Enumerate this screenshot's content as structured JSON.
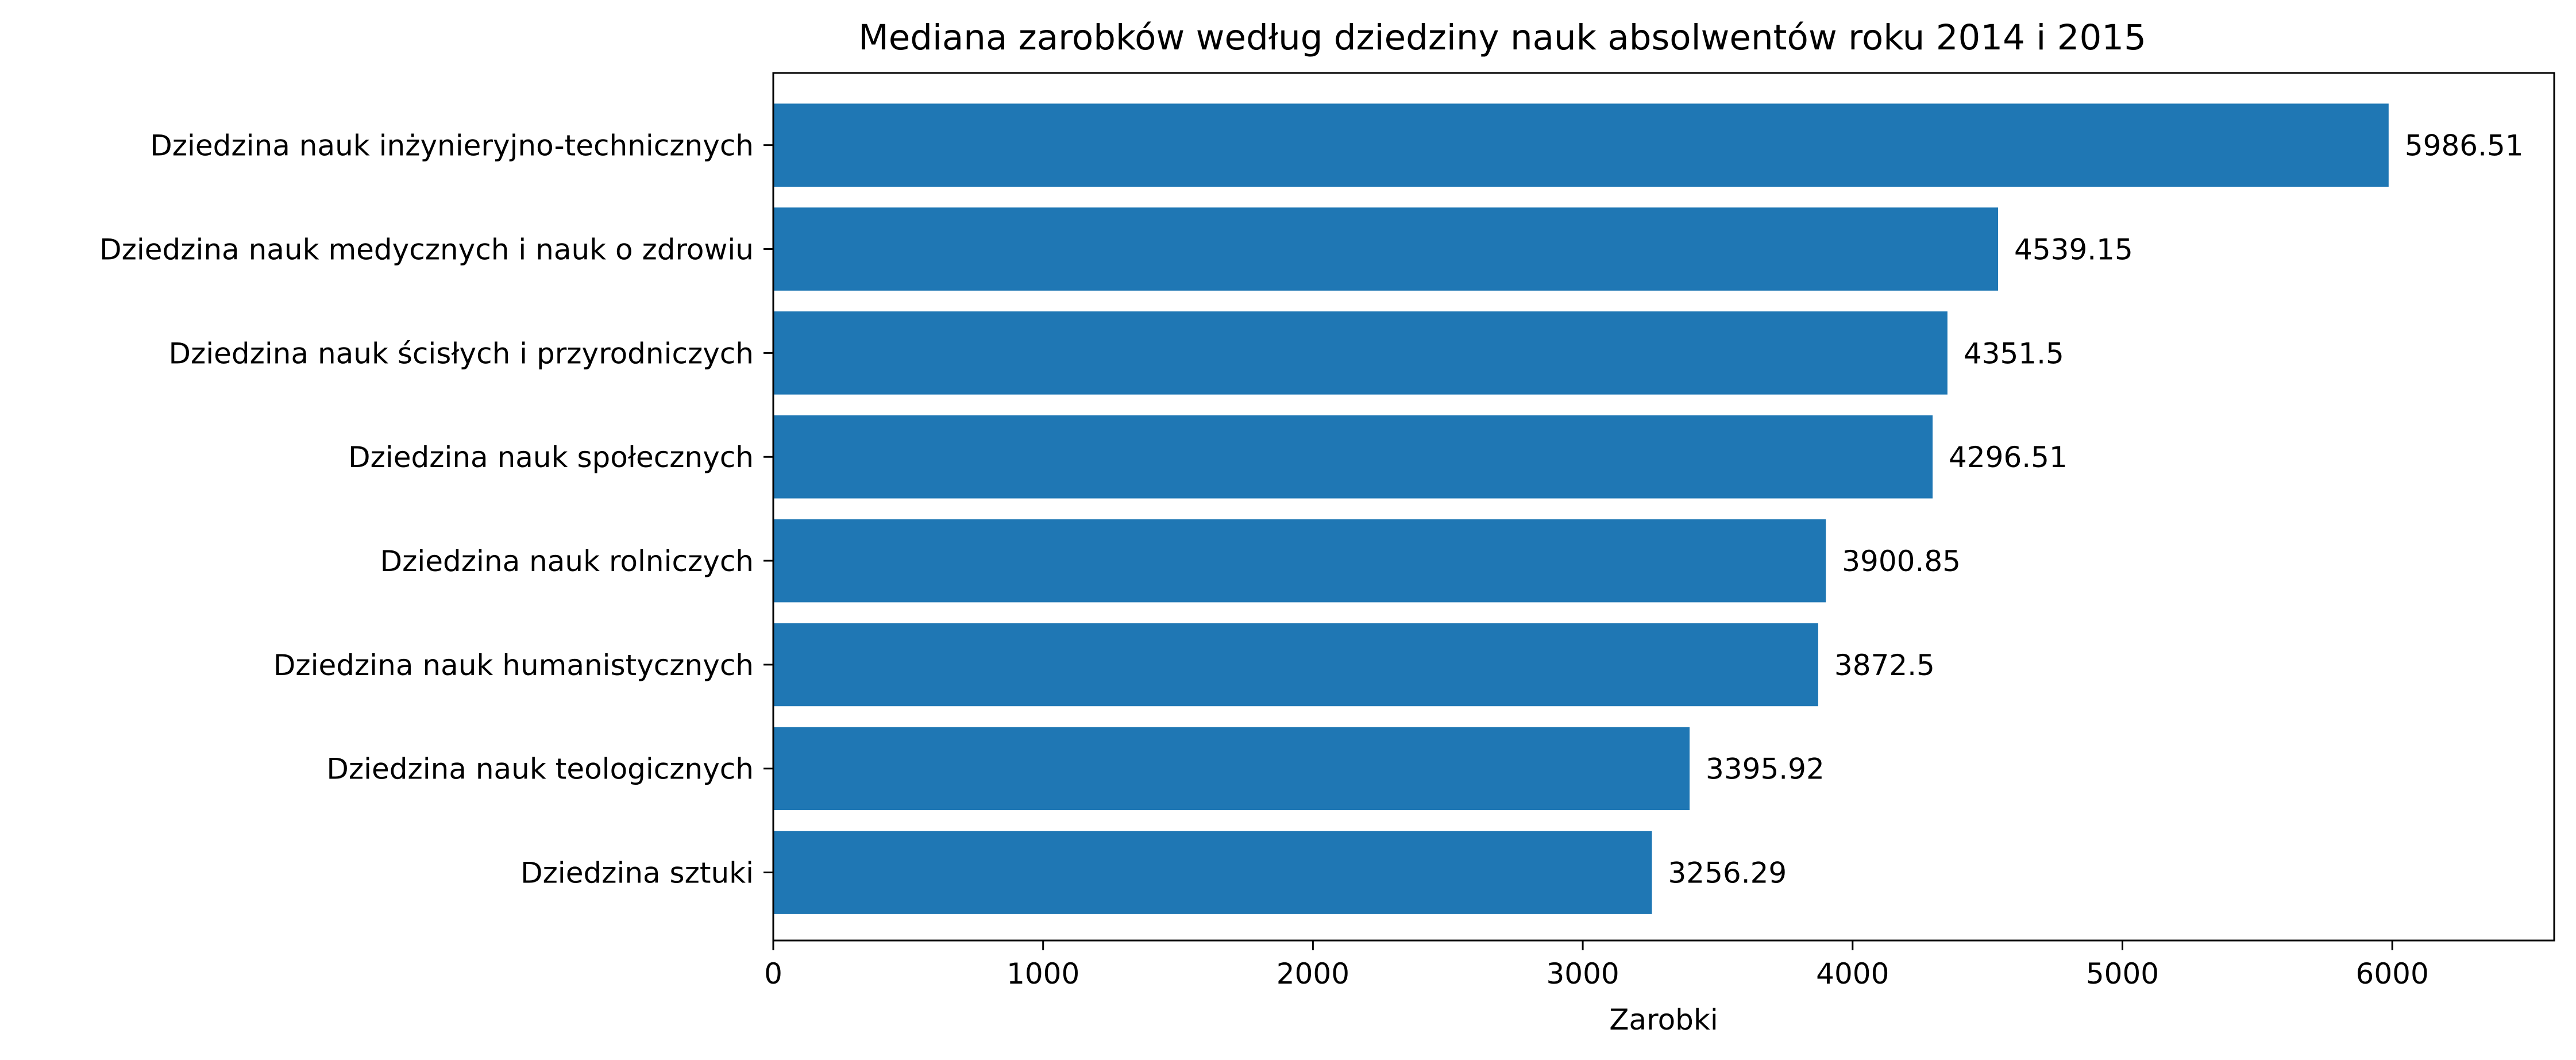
{
  "chart_data": {
    "type": "bar",
    "orientation": "horizontal",
    "title": "Mediana zarobków według dziedziny nauk absolwentów roku 2014 i 2015",
    "xlabel": "Zarobki",
    "ylabel": "",
    "categories": [
      "Dziedzina nauk inżynieryjno-technicznych",
      "Dziedzina nauk medycznych i nauk o zdrowiu",
      "Dziedzina nauk ścisłych i przyrodniczych",
      "Dziedzina nauk społecznych",
      "Dziedzina nauk rolniczych",
      "Dziedzina nauk humanistycznych",
      "Dziedzina nauk teologicznych",
      "Dziedzina sztuki"
    ],
    "values": [
      5986.51,
      4539.15,
      4351.5,
      4296.51,
      3900.85,
      3872.5,
      3395.92,
      3256.29
    ],
    "value_labels": [
      "5986.51",
      "4539.15",
      "4351.5",
      "4296.51",
      "3900.85",
      "3872.5",
      "3395.92",
      "3256.29"
    ],
    "xlim": [
      0,
      6600
    ],
    "xticks": [
      0,
      1000,
      2000,
      3000,
      4000,
      5000,
      6000
    ],
    "xtick_labels": [
      "0",
      "1000",
      "2000",
      "3000",
      "4000",
      "5000",
      "6000"
    ],
    "grid": false,
    "legend": "none",
    "bar_color": "#1f77b4"
  }
}
